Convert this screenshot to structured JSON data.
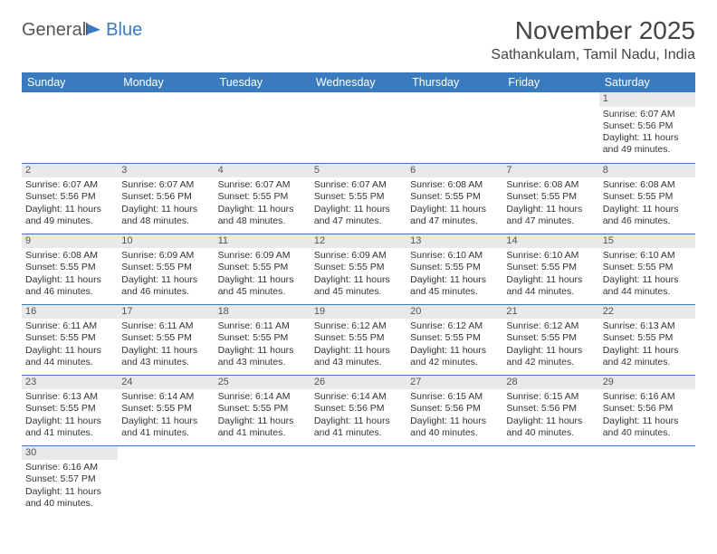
{
  "logo": {
    "part1": "General",
    "part2": "Blue"
  },
  "title": "November 2025",
  "location": "Sathankulam, Tamil Nadu, India",
  "colors": {
    "header_bg": "#3a7bbf",
    "header_fg": "#ffffff",
    "rule": "#3a7bbf",
    "daynum_bg": "#e9e9e9"
  },
  "weekdays": [
    "Sunday",
    "Monday",
    "Tuesday",
    "Wednesday",
    "Thursday",
    "Friday",
    "Saturday"
  ],
  "weeks": [
    [
      null,
      null,
      null,
      null,
      null,
      null,
      {
        "n": "1",
        "sr": "Sunrise: 6:07 AM",
        "ss": "Sunset: 5:56 PM",
        "d1": "Daylight: 11 hours",
        "d2": "and 49 minutes."
      }
    ],
    [
      {
        "n": "2",
        "sr": "Sunrise: 6:07 AM",
        "ss": "Sunset: 5:56 PM",
        "d1": "Daylight: 11 hours",
        "d2": "and 49 minutes."
      },
      {
        "n": "3",
        "sr": "Sunrise: 6:07 AM",
        "ss": "Sunset: 5:56 PM",
        "d1": "Daylight: 11 hours",
        "d2": "and 48 minutes."
      },
      {
        "n": "4",
        "sr": "Sunrise: 6:07 AM",
        "ss": "Sunset: 5:55 PM",
        "d1": "Daylight: 11 hours",
        "d2": "and 48 minutes."
      },
      {
        "n": "5",
        "sr": "Sunrise: 6:07 AM",
        "ss": "Sunset: 5:55 PM",
        "d1": "Daylight: 11 hours",
        "d2": "and 47 minutes."
      },
      {
        "n": "6",
        "sr": "Sunrise: 6:08 AM",
        "ss": "Sunset: 5:55 PM",
        "d1": "Daylight: 11 hours",
        "d2": "and 47 minutes."
      },
      {
        "n": "7",
        "sr": "Sunrise: 6:08 AM",
        "ss": "Sunset: 5:55 PM",
        "d1": "Daylight: 11 hours",
        "d2": "and 47 minutes."
      },
      {
        "n": "8",
        "sr": "Sunrise: 6:08 AM",
        "ss": "Sunset: 5:55 PM",
        "d1": "Daylight: 11 hours",
        "d2": "and 46 minutes."
      }
    ],
    [
      {
        "n": "9",
        "sr": "Sunrise: 6:08 AM",
        "ss": "Sunset: 5:55 PM",
        "d1": "Daylight: 11 hours",
        "d2": "and 46 minutes."
      },
      {
        "n": "10",
        "sr": "Sunrise: 6:09 AM",
        "ss": "Sunset: 5:55 PM",
        "d1": "Daylight: 11 hours",
        "d2": "and 46 minutes."
      },
      {
        "n": "11",
        "sr": "Sunrise: 6:09 AM",
        "ss": "Sunset: 5:55 PM",
        "d1": "Daylight: 11 hours",
        "d2": "and 45 minutes."
      },
      {
        "n": "12",
        "sr": "Sunrise: 6:09 AM",
        "ss": "Sunset: 5:55 PM",
        "d1": "Daylight: 11 hours",
        "d2": "and 45 minutes."
      },
      {
        "n": "13",
        "sr": "Sunrise: 6:10 AM",
        "ss": "Sunset: 5:55 PM",
        "d1": "Daylight: 11 hours",
        "d2": "and 45 minutes."
      },
      {
        "n": "14",
        "sr": "Sunrise: 6:10 AM",
        "ss": "Sunset: 5:55 PM",
        "d1": "Daylight: 11 hours",
        "d2": "and 44 minutes."
      },
      {
        "n": "15",
        "sr": "Sunrise: 6:10 AM",
        "ss": "Sunset: 5:55 PM",
        "d1": "Daylight: 11 hours",
        "d2": "and 44 minutes."
      }
    ],
    [
      {
        "n": "16",
        "sr": "Sunrise: 6:11 AM",
        "ss": "Sunset: 5:55 PM",
        "d1": "Daylight: 11 hours",
        "d2": "and 44 minutes."
      },
      {
        "n": "17",
        "sr": "Sunrise: 6:11 AM",
        "ss": "Sunset: 5:55 PM",
        "d1": "Daylight: 11 hours",
        "d2": "and 43 minutes."
      },
      {
        "n": "18",
        "sr": "Sunrise: 6:11 AM",
        "ss": "Sunset: 5:55 PM",
        "d1": "Daylight: 11 hours",
        "d2": "and 43 minutes."
      },
      {
        "n": "19",
        "sr": "Sunrise: 6:12 AM",
        "ss": "Sunset: 5:55 PM",
        "d1": "Daylight: 11 hours",
        "d2": "and 43 minutes."
      },
      {
        "n": "20",
        "sr": "Sunrise: 6:12 AM",
        "ss": "Sunset: 5:55 PM",
        "d1": "Daylight: 11 hours",
        "d2": "and 42 minutes."
      },
      {
        "n": "21",
        "sr": "Sunrise: 6:12 AM",
        "ss": "Sunset: 5:55 PM",
        "d1": "Daylight: 11 hours",
        "d2": "and 42 minutes."
      },
      {
        "n": "22",
        "sr": "Sunrise: 6:13 AM",
        "ss": "Sunset: 5:55 PM",
        "d1": "Daylight: 11 hours",
        "d2": "and 42 minutes."
      }
    ],
    [
      {
        "n": "23",
        "sr": "Sunrise: 6:13 AM",
        "ss": "Sunset: 5:55 PM",
        "d1": "Daylight: 11 hours",
        "d2": "and 41 minutes."
      },
      {
        "n": "24",
        "sr": "Sunrise: 6:14 AM",
        "ss": "Sunset: 5:55 PM",
        "d1": "Daylight: 11 hours",
        "d2": "and 41 minutes."
      },
      {
        "n": "25",
        "sr": "Sunrise: 6:14 AM",
        "ss": "Sunset: 5:55 PM",
        "d1": "Daylight: 11 hours",
        "d2": "and 41 minutes."
      },
      {
        "n": "26",
        "sr": "Sunrise: 6:14 AM",
        "ss": "Sunset: 5:56 PM",
        "d1": "Daylight: 11 hours",
        "d2": "and 41 minutes."
      },
      {
        "n": "27",
        "sr": "Sunrise: 6:15 AM",
        "ss": "Sunset: 5:56 PM",
        "d1": "Daylight: 11 hours",
        "d2": "and 40 minutes."
      },
      {
        "n": "28",
        "sr": "Sunrise: 6:15 AM",
        "ss": "Sunset: 5:56 PM",
        "d1": "Daylight: 11 hours",
        "d2": "and 40 minutes."
      },
      {
        "n": "29",
        "sr": "Sunrise: 6:16 AM",
        "ss": "Sunset: 5:56 PM",
        "d1": "Daylight: 11 hours",
        "d2": "and 40 minutes."
      }
    ],
    [
      {
        "n": "30",
        "sr": "Sunrise: 6:16 AM",
        "ss": "Sunset: 5:57 PM",
        "d1": "Daylight: 11 hours",
        "d2": "and 40 minutes."
      },
      null,
      null,
      null,
      null,
      null,
      null
    ]
  ]
}
